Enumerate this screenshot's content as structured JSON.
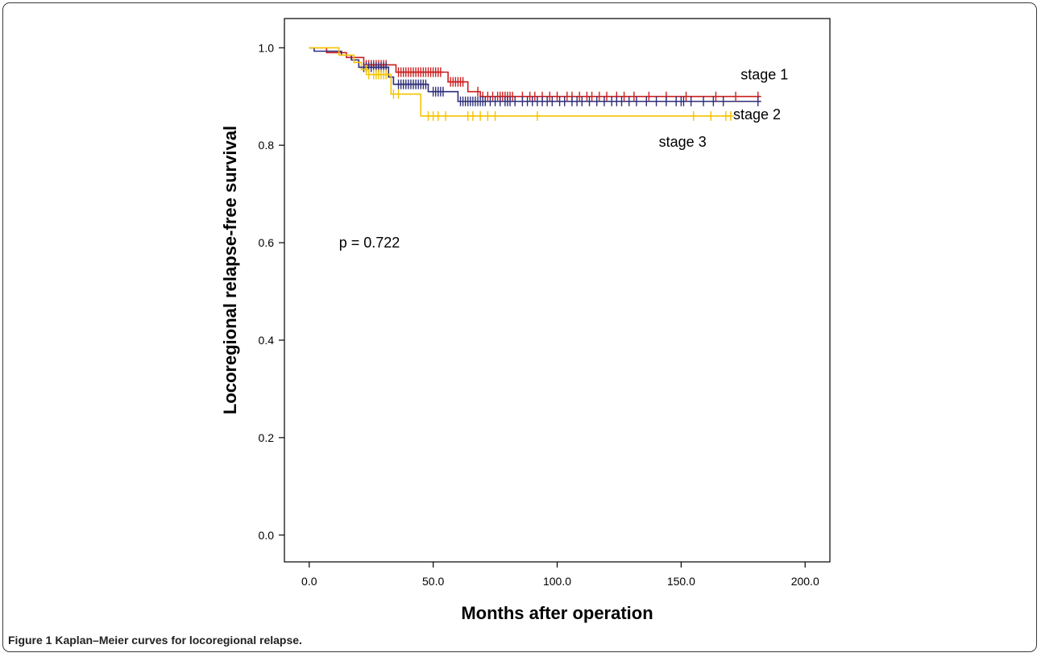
{
  "caption": {
    "label": "Figure 1",
    "text": "Kaplan–Meier curves for locoregional relapse."
  },
  "chart_data": {
    "type": "line",
    "step": true,
    "xlabel": "Months after operation",
    "ylabel": "Locoregional relapse-free survival",
    "xlim": [
      -10,
      210
    ],
    "ylim": [
      -0.055,
      1.06
    ],
    "xticks": [
      0,
      50,
      100,
      150,
      200
    ],
    "xtick_labels": [
      "0.0",
      "50.0",
      "100.0",
      "150.0",
      "200.0"
    ],
    "yticks": [
      0,
      0.2,
      0.4,
      0.6,
      0.8,
      1.0
    ],
    "ytick_labels": [
      "0.0",
      "0.2",
      "0.4",
      "0.6",
      "0.8",
      "1.0"
    ],
    "grid": false,
    "annotations": [
      {
        "id": "p-value",
        "text": "p = 0.722",
        "x": 12,
        "y": 0.59
      }
    ],
    "series": [
      {
        "name": "stage 1",
        "color": "#cc1f1f",
        "label_at": {
          "x": 174,
          "y": 0.935
        },
        "steps": [
          [
            0,
            1.0
          ],
          [
            7,
            0.99
          ],
          [
            15,
            0.98
          ],
          [
            22,
            0.965
          ],
          [
            35,
            0.95
          ],
          [
            56,
            0.93
          ],
          [
            64,
            0.91
          ],
          [
            69,
            0.9
          ],
          [
            182,
            0.9
          ]
        ],
        "censored": [
          23,
          24,
          25,
          26,
          27,
          28,
          29,
          30,
          31,
          36,
          37,
          38,
          39,
          40,
          41,
          42,
          43,
          44,
          45,
          46,
          47,
          48,
          49,
          50,
          51,
          52,
          53,
          57,
          58,
          59,
          60,
          61,
          62,
          68,
          70,
          72,
          74,
          76,
          77,
          78,
          79,
          80,
          81,
          82,
          86,
          89,
          91,
          94,
          97,
          100,
          104,
          106,
          109,
          112,
          114,
          117,
          120,
          124,
          127,
          131,
          137,
          144,
          152,
          164,
          172,
          181
        ]
      },
      {
        "name": "stage 2",
        "color": "#2e2e7a",
        "label_at": {
          "x": 171,
          "y": 0.853
        },
        "steps": [
          [
            0,
            1.0
          ],
          [
            2,
            0.993
          ],
          [
            13,
            0.985
          ],
          [
            17,
            0.975
          ],
          [
            20,
            0.96
          ],
          [
            32,
            0.94
          ],
          [
            34,
            0.925
          ],
          [
            48,
            0.91
          ],
          [
            60,
            0.89
          ],
          [
            182,
            0.89
          ]
        ],
        "censored": [
          22,
          23,
          24,
          25,
          26,
          27,
          28,
          29,
          30,
          31,
          36,
          37,
          38,
          39,
          40,
          41,
          42,
          43,
          44,
          45,
          46,
          47,
          50,
          51,
          52,
          53,
          54,
          61,
          62,
          63,
          64,
          65,
          66,
          67,
          68,
          69,
          70,
          71,
          73,
          75,
          77,
          79,
          80,
          81,
          83,
          86,
          88,
          90,
          92,
          94,
          96,
          98,
          101,
          103,
          106,
          108,
          110,
          113,
          116,
          119,
          122,
          124,
          126,
          129,
          132,
          136,
          140,
          144,
          148,
          150,
          151,
          154,
          159,
          163,
          167,
          181
        ]
      },
      {
        "name": "stage 3",
        "color": "#f5c400",
        "label_at": {
          "x": 141,
          "y": 0.797
        },
        "steps": [
          [
            0,
            1.0
          ],
          [
            12,
            0.985
          ],
          [
            18,
            0.97
          ],
          [
            21,
            0.955
          ],
          [
            24,
            0.945
          ],
          [
            33,
            0.905
          ],
          [
            45,
            0.86
          ],
          [
            170,
            0.86
          ]
        ],
        "censored": [
          23,
          24,
          26,
          27,
          28,
          29,
          30,
          31,
          34,
          36,
          48,
          50,
          52,
          55,
          64,
          66,
          69,
          72,
          75,
          92,
          155,
          162,
          168,
          170
        ]
      }
    ]
  }
}
